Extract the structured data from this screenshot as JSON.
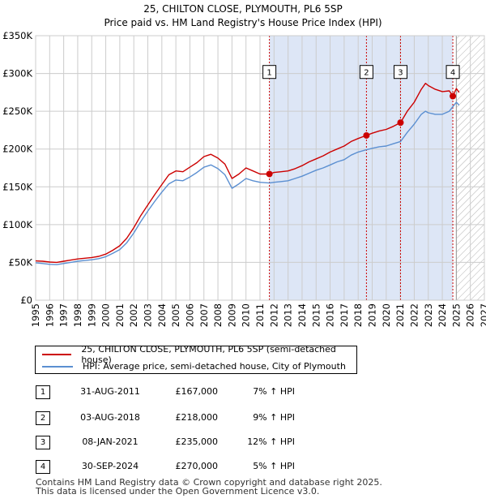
{
  "title_line1": "25, CHILTON CLOSE, PLYMOUTH, PL6 5SP",
  "title_line2": "Price paid vs. HM Land Registry's House Price Index (HPI)",
  "colors": {
    "property": "#cc0000",
    "hpi": "#5b8fd1",
    "shade": "#dde6f6",
    "grid": "#cccccc",
    "future_hatch": "#aaaaaa"
  },
  "chart_data": {
    "type": "line",
    "xlim": [
      1995,
      2027
    ],
    "ylim": [
      0,
      350000
    ],
    "y_ticks": [
      0,
      50000,
      100000,
      150000,
      200000,
      250000,
      300000,
      350000
    ],
    "y_tick_labels": [
      "£0",
      "£50K",
      "£100K",
      "£150K",
      "£200K",
      "£250K",
      "£300K",
      "£350K"
    ],
    "x_tick_labels": [
      "1995",
      "1996",
      "1997",
      "1998",
      "1999",
      "2000",
      "2001",
      "2002",
      "2003",
      "2004",
      "2005",
      "2006",
      "2007",
      "2008",
      "2009",
      "2010",
      "2011",
      "2012",
      "2013",
      "2014",
      "2015",
      "2016",
      "2017",
      "2018",
      "2019",
      "2020",
      "2021",
      "2022",
      "2023",
      "2024",
      "2025",
      "2026",
      "2027"
    ],
    "future_start": 2025.0,
    "series": [
      {
        "name": "25, CHILTON CLOSE, PLYMOUTH, PL6 5SP (semi-detached house)",
        "color": "#cc0000",
        "points": [
          [
            1995.0,
            52000
          ],
          [
            1995.5,
            51500
          ],
          [
            1996.0,
            50500
          ],
          [
            1996.5,
            50000
          ],
          [
            1997.0,
            51500
          ],
          [
            1997.5,
            53000
          ],
          [
            1998.0,
            54500
          ],
          [
            1998.5,
            55500
          ],
          [
            1999.0,
            56500
          ],
          [
            1999.5,
            58000
          ],
          [
            2000.0,
            61000
          ],
          [
            2000.5,
            66000
          ],
          [
            2001.0,
            72000
          ],
          [
            2001.5,
            82000
          ],
          [
            2002.0,
            96000
          ],
          [
            2002.5,
            112000
          ],
          [
            2003.0,
            126000
          ],
          [
            2003.5,
            140000
          ],
          [
            2004.0,
            153000
          ],
          [
            2004.5,
            166000
          ],
          [
            2005.0,
            171000
          ],
          [
            2005.5,
            170000
          ],
          [
            2006.0,
            176000
          ],
          [
            2006.5,
            182000
          ],
          [
            2007.0,
            190000
          ],
          [
            2007.5,
            193000
          ],
          [
            2008.0,
            188000
          ],
          [
            2008.5,
            180000
          ],
          [
            2009.0,
            161000
          ],
          [
            2009.5,
            167000
          ],
          [
            2010.0,
            175000
          ],
          [
            2010.5,
            171000
          ],
          [
            2011.0,
            167000
          ],
          [
            2011.67,
            167000
          ],
          [
            2012.0,
            169000
          ],
          [
            2012.5,
            170000
          ],
          [
            2013.0,
            171000
          ],
          [
            2013.5,
            174000
          ],
          [
            2014.0,
            178000
          ],
          [
            2014.5,
            183000
          ],
          [
            2015.0,
            187000
          ],
          [
            2015.5,
            191000
          ],
          [
            2016.0,
            196000
          ],
          [
            2016.5,
            200000
          ],
          [
            2017.0,
            204000
          ],
          [
            2017.5,
            210000
          ],
          [
            2018.0,
            214000
          ],
          [
            2018.59,
            218000
          ],
          [
            2019.0,
            221000
          ],
          [
            2019.5,
            224000
          ],
          [
            2020.0,
            226000
          ],
          [
            2020.5,
            230000
          ],
          [
            2021.02,
            235000
          ],
          [
            2021.5,
            250000
          ],
          [
            2022.0,
            262000
          ],
          [
            2022.5,
            279000
          ],
          [
            2022.8,
            287000
          ],
          [
            2023.0,
            284000
          ],
          [
            2023.5,
            279000
          ],
          [
            2024.0,
            276000
          ],
          [
            2024.5,
            277000
          ],
          [
            2024.75,
            270000
          ],
          [
            2025.0,
            280000
          ],
          [
            2025.2,
            275000
          ]
        ]
      },
      {
        "name": "HPI: Average price, semi-detached house, City of Plymouth",
        "color": "#5b8fd1",
        "points": [
          [
            1995.0,
            49500
          ],
          [
            1995.5,
            48500
          ],
          [
            1996.0,
            47500
          ],
          [
            1996.5,
            47000
          ],
          [
            1997.0,
            48500
          ],
          [
            1997.5,
            50000
          ],
          [
            1998.0,
            51500
          ],
          [
            1998.5,
            52500
          ],
          [
            1999.0,
            53500
          ],
          [
            1999.5,
            55000
          ],
          [
            2000.0,
            57500
          ],
          [
            2000.5,
            62000
          ],
          [
            2001.0,
            67000
          ],
          [
            2001.5,
            76000
          ],
          [
            2002.0,
            89000
          ],
          [
            2002.5,
            104000
          ],
          [
            2003.0,
            118000
          ],
          [
            2003.5,
            131000
          ],
          [
            2004.0,
            143000
          ],
          [
            2004.5,
            154000
          ],
          [
            2005.0,
            159000
          ],
          [
            2005.5,
            158000
          ],
          [
            2006.0,
            163000
          ],
          [
            2006.5,
            169000
          ],
          [
            2007.0,
            176000
          ],
          [
            2007.5,
            179000
          ],
          [
            2008.0,
            174000
          ],
          [
            2008.5,
            166000
          ],
          [
            2009.0,
            148000
          ],
          [
            2009.5,
            154000
          ],
          [
            2010.0,
            161000
          ],
          [
            2010.5,
            158000
          ],
          [
            2011.0,
            156000
          ],
          [
            2011.67,
            155000
          ],
          [
            2012.0,
            156000
          ],
          [
            2012.5,
            157000
          ],
          [
            2013.0,
            158000
          ],
          [
            2013.5,
            161000
          ],
          [
            2014.0,
            164000
          ],
          [
            2014.5,
            168000
          ],
          [
            2015.0,
            172000
          ],
          [
            2015.5,
            175000
          ],
          [
            2016.0,
            179000
          ],
          [
            2016.5,
            183000
          ],
          [
            2017.0,
            186000
          ],
          [
            2017.5,
            192000
          ],
          [
            2018.0,
            196000
          ],
          [
            2018.59,
            199000
          ],
          [
            2019.0,
            201000
          ],
          [
            2019.5,
            203000
          ],
          [
            2020.0,
            204000
          ],
          [
            2020.5,
            207000
          ],
          [
            2021.02,
            210000
          ],
          [
            2021.5,
            222000
          ],
          [
            2022.0,
            233000
          ],
          [
            2022.5,
            246000
          ],
          [
            2022.8,
            250000
          ],
          [
            2023.0,
            248000
          ],
          [
            2023.5,
            246000
          ],
          [
            2024.0,
            246000
          ],
          [
            2024.5,
            250000
          ],
          [
            2024.75,
            256000
          ],
          [
            2025.0,
            262000
          ],
          [
            2025.2,
            258000
          ]
        ]
      }
    ],
    "sales": [
      {
        "label": "1",
        "x": 2011.67,
        "price": 167000
      },
      {
        "label": "2",
        "x": 2018.59,
        "price": 218000
      },
      {
        "label": "3",
        "x": 2021.02,
        "price": 235000
      },
      {
        "label": "4",
        "x": 2024.75,
        "price": 270000
      }
    ],
    "marker_label_value": 302000
  },
  "legend": {
    "property": "25, CHILTON CLOSE, PLYMOUTH, PL6 5SP (semi-detached house)",
    "hpi": "HPI: Average price, semi-detached house, City of Plymouth"
  },
  "transactions": [
    {
      "num": "1",
      "date": "31-AUG-2011",
      "price": "£167,000",
      "hpi": "7% ↑ HPI"
    },
    {
      "num": "2",
      "date": "03-AUG-2018",
      "price": "£218,000",
      "hpi": "9% ↑ HPI"
    },
    {
      "num": "3",
      "date": "08-JAN-2021",
      "price": "£235,000",
      "hpi": "12% ↑ HPI"
    },
    {
      "num": "4",
      "date": "30-SEP-2024",
      "price": "£270,000",
      "hpi": "5% ↑ HPI"
    }
  ],
  "footer": {
    "line1": "Contains HM Land Registry data © Crown copyright and database right 2025.",
    "line2": "This data is licensed under the Open Government Licence v3.0."
  }
}
